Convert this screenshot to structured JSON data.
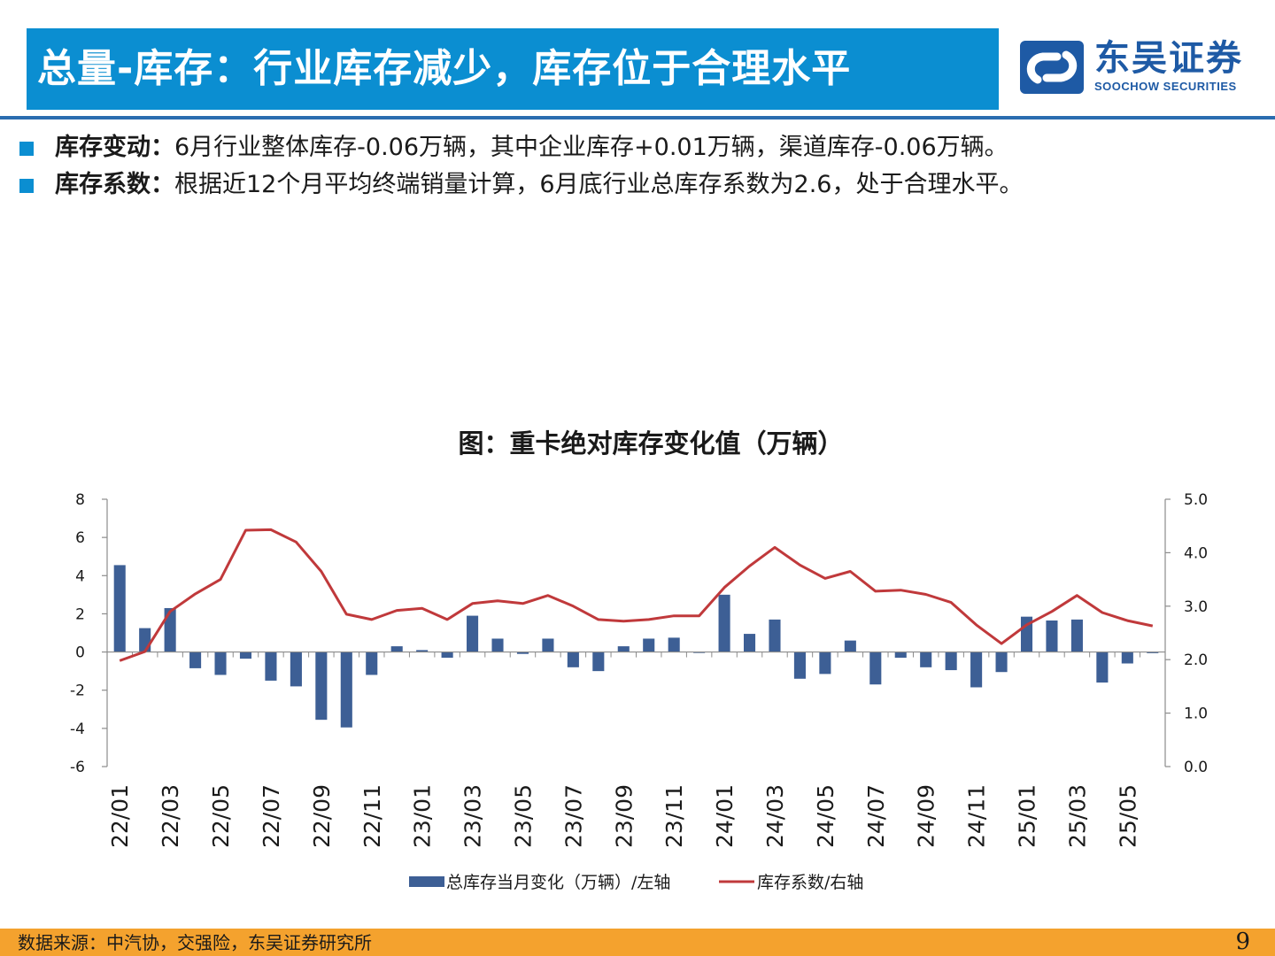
{
  "header": {
    "title": "总量-库存：行业库存减少，库存位于合理水平",
    "logo_cn": "东吴证券",
    "logo_en": "SOOCHOW SECURITIES"
  },
  "bullets": [
    {
      "label": "库存变动：",
      "text": "6月行业整体库存-0.06万辆，其中企业库存+0.01万辆，渠道库存-0.06万辆。"
    },
    {
      "label": "库存系数：",
      "text": "根据近12个月平均终端销量计算，6月底行业总库存系数为2.6，处于合理水平。"
    }
  ],
  "chart_title": "图：重卡绝对库存变化值（万辆）",
  "chart_data": {
    "type": "bar",
    "categories": [
      "22/01",
      "22/02",
      "22/03",
      "22/04",
      "22/05",
      "22/06",
      "22/07",
      "22/08",
      "22/09",
      "22/10",
      "22/11",
      "22/12",
      "23/01",
      "23/02",
      "23/03",
      "23/04",
      "23/05",
      "23/06",
      "23/07",
      "23/08",
      "23/09",
      "23/10",
      "23/11",
      "23/12",
      "24/01",
      "24/02",
      "24/03",
      "24/04",
      "24/05",
      "24/06",
      "24/07",
      "24/08",
      "24/09",
      "24/10",
      "24/11",
      "24/12",
      "25/01",
      "25/02",
      "25/03",
      "25/04",
      "25/05",
      "25/06"
    ],
    "x_tick_labels": [
      "22/01",
      "22/03",
      "22/05",
      "22/07",
      "22/09",
      "22/11",
      "23/01",
      "23/03",
      "23/05",
      "23/07",
      "23/09",
      "23/11",
      "24/01",
      "24/03",
      "24/05",
      "24/07",
      "24/09",
      "24/11",
      "25/01",
      "25/03",
      "25/05"
    ],
    "series": [
      {
        "name": "总库存当月变化（万辆）/左轴",
        "type": "bar",
        "axis": "left",
        "color": "#3d5f95",
        "values": [
          4.55,
          1.25,
          2.3,
          -0.85,
          -1.2,
          -0.35,
          -1.5,
          -1.8,
          -3.55,
          -3.95,
          -1.2,
          0.3,
          0.1,
          -0.3,
          1.9,
          0.7,
          -0.1,
          0.7,
          -0.8,
          -1.0,
          0.3,
          0.7,
          0.75,
          -0.05,
          3.0,
          0.95,
          1.7,
          -1.4,
          -1.15,
          0.6,
          -1.7,
          -0.3,
          -0.8,
          -0.95,
          -1.85,
          -1.05,
          1.85,
          1.65,
          1.7,
          -1.6,
          -0.6,
          -0.06
        ]
      },
      {
        "name": "库存系数/右轴",
        "type": "line",
        "axis": "right",
        "color": "#c0393b",
        "values": [
          1.98,
          2.15,
          2.9,
          3.23,
          3.5,
          4.42,
          4.43,
          4.2,
          3.65,
          2.85,
          2.75,
          2.92,
          2.96,
          2.75,
          3.05,
          3.1,
          3.05,
          3.2,
          3.0,
          2.75,
          2.72,
          2.75,
          2.82,
          2.82,
          3.35,
          3.75,
          4.1,
          3.77,
          3.52,
          3.65,
          3.28,
          3.3,
          3.22,
          3.07,
          2.65,
          2.3,
          2.65,
          2.9,
          3.2,
          2.88,
          2.73,
          2.63
        ]
      }
    ],
    "y_left": {
      "min": -6,
      "max": 8,
      "ticks": [
        -6,
        -4,
        -2,
        0,
        2,
        4,
        6,
        8
      ]
    },
    "y_right": {
      "min": 0,
      "max": 5,
      "ticks": [
        "0.0",
        "1.0",
        "2.0",
        "3.0",
        "4.0",
        "5.0"
      ]
    },
    "legend_position": "bottom",
    "grid": false
  },
  "footer": {
    "source": "数据来源：中汽协，交强险，东吴证券研究所",
    "page_number": "9"
  }
}
